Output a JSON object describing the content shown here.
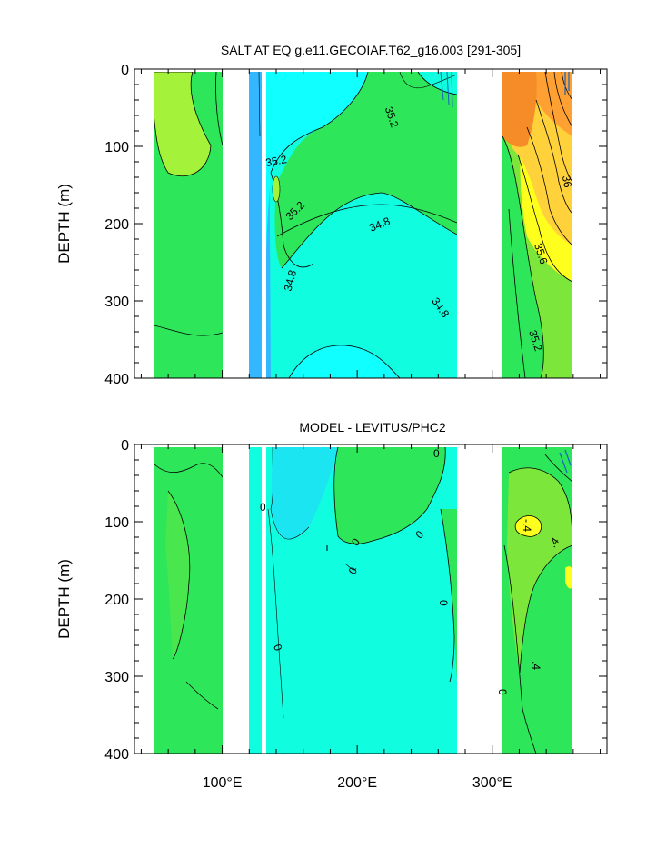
{
  "chart_data": [
    {
      "type": "heatmap",
      "title": "SALT AT EQ g.e11.GECOIAF.T62_g16.003 [291-305]",
      "xlabel": "",
      "ylabel": "DEPTH (m)",
      "xlim": [
        35,
        385
      ],
      "ylim": [
        400,
        0
      ],
      "y_ticks": [
        0,
        100,
        200,
        300,
        400
      ],
      "y_tick_labels": [
        "0",
        "100",
        "200",
        "300",
        "400"
      ],
      "x_ticks": [
        100,
        200,
        300
      ],
      "x_tick_labels": [
        "100°E",
        "200°E",
        "300°E"
      ],
      "contour_labels": [
        "35.2",
        "35.2",
        "35.2",
        "34.8",
        "34.8",
        "34.8",
        "36",
        "35.6",
        "35.2"
      ]
    },
    {
      "type": "heatmap",
      "title": "MODEL - LEVITUS/PHC2",
      "xlabel": "",
      "ylabel": "DEPTH (m)",
      "xlim": [
        35,
        385
      ],
      "ylim": [
        400,
        0
      ],
      "y_ticks": [
        0,
        100,
        200,
        300,
        400
      ],
      "y_tick_labels": [
        "0",
        "100",
        "200",
        "300",
        "400"
      ],
      "x_ticks": [
        100,
        200,
        300
      ],
      "x_tick_labels": [
        "100°E",
        "200°E",
        "300°E"
      ],
      "contour_labels": [
        "0",
        "0",
        "0",
        "0",
        "0",
        "0",
        "0",
        "0",
        "-.4",
        ".4",
        ".4"
      ]
    }
  ],
  "colors": {
    "cyan_light": "#10fde0",
    "cyan": "#10ffff",
    "cyan_mid": "#1ce5f2",
    "blue": "#33b8ff",
    "green": "#2ee65a",
    "green_light": "#7de63a",
    "lime": "#a4f23a",
    "yellow": "#ffff1e",
    "gold": "#ffd23c",
    "orange": "#ffa032",
    "dark_orange": "#f58c28"
  }
}
